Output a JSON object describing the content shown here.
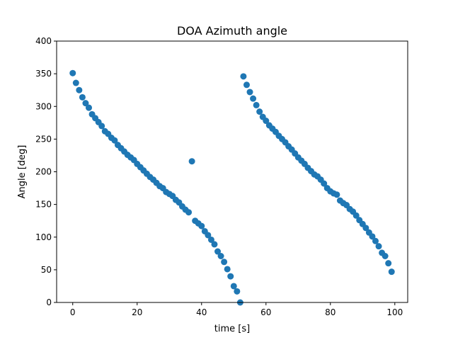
{
  "chart_data": {
    "type": "scatter",
    "title": "DOA Azimuth angle",
    "xlabel": "time [s]",
    "ylabel": "Angle [deg]",
    "xlim": [
      -5,
      104
    ],
    "ylim": [
      0,
      400
    ],
    "xticks": [
      0,
      20,
      40,
      60,
      80,
      100
    ],
    "yticks": [
      0,
      50,
      100,
      150,
      200,
      250,
      300,
      350,
      400
    ],
    "xtick_labels": [
      "0",
      "20",
      "40",
      "60",
      "80",
      "100"
    ],
    "ytick_labels": [
      "0",
      "50",
      "100",
      "150",
      "200",
      "250",
      "300",
      "350",
      "400"
    ],
    "grid": false,
    "marker_color": "#1f77b4",
    "series": [
      {
        "x": [
          0,
          1,
          2,
          3,
          4,
          5,
          6,
          7,
          8,
          9,
          10,
          11,
          12,
          13,
          14,
          15,
          16,
          17,
          18,
          19,
          20,
          21,
          22,
          23,
          24,
          25,
          26,
          27,
          28,
          29,
          30,
          31,
          32,
          33,
          34,
          35,
          36,
          37,
          38,
          39,
          40,
          41,
          42,
          43,
          44,
          45,
          46,
          47,
          48,
          49,
          50,
          51,
          52,
          53,
          54,
          55,
          56,
          57,
          58,
          59,
          60,
          61,
          62,
          63,
          64,
          65,
          66,
          67,
          68,
          69,
          70,
          71,
          72,
          73,
          74,
          75,
          76,
          77,
          78,
          79,
          80,
          81,
          82,
          83,
          84,
          85,
          86,
          87,
          88,
          89,
          90,
          91,
          92,
          93,
          94,
          95,
          96,
          97,
          98,
          99
        ],
        "y": [
          351,
          336,
          325,
          314,
          305,
          298,
          288,
          282,
          276,
          270,
          262,
          258,
          252,
          248,
          241,
          236,
          231,
          226,
          222,
          218,
          212,
          207,
          202,
          197,
          192,
          188,
          183,
          178,
          175,
          169,
          166,
          163,
          157,
          153,
          147,
          142,
          138,
          216,
          125,
          121,
          117,
          109,
          103,
          96,
          89,
          78,
          71,
          62,
          51,
          40,
          25,
          17,
          0,
          346,
          333,
          322,
          312,
          302,
          292,
          284,
          278,
          271,
          266,
          261,
          255,
          250,
          245,
          239,
          234,
          228,
          222,
          217,
          212,
          206,
          201,
          196,
          193,
          188,
          182,
          175,
          170,
          167,
          165,
          156,
          152,
          149,
          143,
          139,
          133,
          126,
          120,
          114,
          107,
          101,
          94,
          86,
          76,
          71,
          60,
          47
        ]
      }
    ]
  }
}
